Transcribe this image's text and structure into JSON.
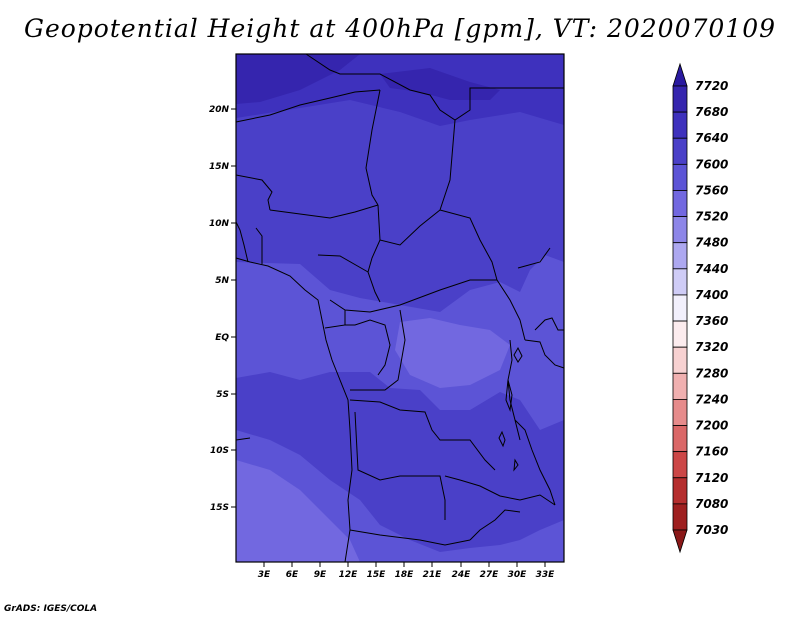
{
  "title": "Geopotential Height at 400hPa [gpm], VT: 2020070109",
  "credit": "GrADS: IGES/COLA",
  "map": {
    "lat_labels": [
      "20N",
      "15N",
      "10N",
      "5N",
      "EQ",
      "5S",
      "10S",
      "15S"
    ],
    "lon_labels": [
      "3E",
      "6E",
      "9E",
      "12E",
      "15E",
      "18E",
      "21E",
      "24E",
      "27E",
      "30E",
      "33E"
    ],
    "region": "Central Africa"
  },
  "colorbar": {
    "levels": [
      "7720",
      "7680",
      "7640",
      "7600",
      "7560",
      "7520",
      "7480",
      "7440",
      "7400",
      "7360",
      "7320",
      "7280",
      "7240",
      "7200",
      "7160",
      "7120",
      "7080",
      "7030"
    ],
    "colors": [
      "#2a1aa0",
      "#3525ae",
      "#3e31bd",
      "#4a40c8",
      "#5c54d6",
      "#7268e0",
      "#8d86e8",
      "#ada8f0",
      "#cfccf6",
      "#f2f0fc",
      "#fcecee",
      "#f7d1d1",
      "#f0b0b0",
      "#e68b8b",
      "#da6767",
      "#cc4747",
      "#b52e2e",
      "#9e1f1f",
      "#8a1818"
    ]
  },
  "colors": {
    "z7600": "#4a40c8",
    "z7560": "#5c54d6",
    "z7640": "#3e31bd",
    "z7520": "#7268e0",
    "z7680": "#3525ae"
  }
}
